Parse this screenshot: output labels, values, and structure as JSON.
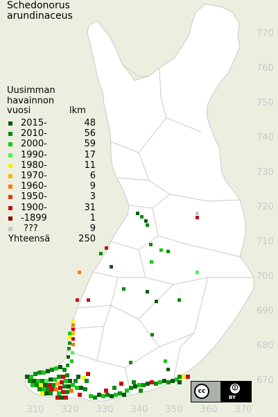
{
  "title": {
    "line1": "Schedonorus",
    "line2": "arundinaceus"
  },
  "legend": {
    "heading_lines": [
      "Uusimman",
      "havainnon"
    ],
    "col_year_label": "vuosi",
    "col_count_label": "lkm",
    "entries": [
      {
        "label": "2015-",
        "count": "48",
        "color": "#0b5a0b"
      },
      {
        "label": "2010-",
        "count": "56",
        "color": "#0e8a10"
      },
      {
        "label": "2000-",
        "count": "59",
        "color": "#19c419"
      },
      {
        "label": "1990-",
        "count": "17",
        "color": "#4df24d"
      },
      {
        "label": "1980-",
        "count": "11",
        "color": "#f4f40c"
      },
      {
        "label": "1970-",
        "count": "6",
        "color": "#f4b40c"
      },
      {
        "label": "1960-",
        "count": "9",
        "color": "#f47a0c"
      },
      {
        "label": "1950-",
        "count": "3",
        "color": "#e03a10"
      },
      {
        "label": "1900-",
        "count": "31",
        "color": "#c41010"
      },
      {
        "label": "-1899",
        "count": "1",
        "color": "#8a0808"
      },
      {
        "label": " ???",
        "count": "9",
        "color": "#c8c8c8"
      }
    ],
    "total_label": "Yhteensä",
    "total_value": "250"
  },
  "axes": {
    "y_ticks": [
      "770",
      "760",
      "750",
      "740",
      "730",
      "720",
      "710",
      "700",
      "690",
      "680",
      "670"
    ],
    "x_ticks": [
      "310",
      "320",
      "330",
      "340",
      "350",
      "360",
      "370"
    ]
  },
  "license_badge": {
    "icons": [
      "cc-icon",
      "by-person-icon"
    ],
    "text": "BY"
  }
}
